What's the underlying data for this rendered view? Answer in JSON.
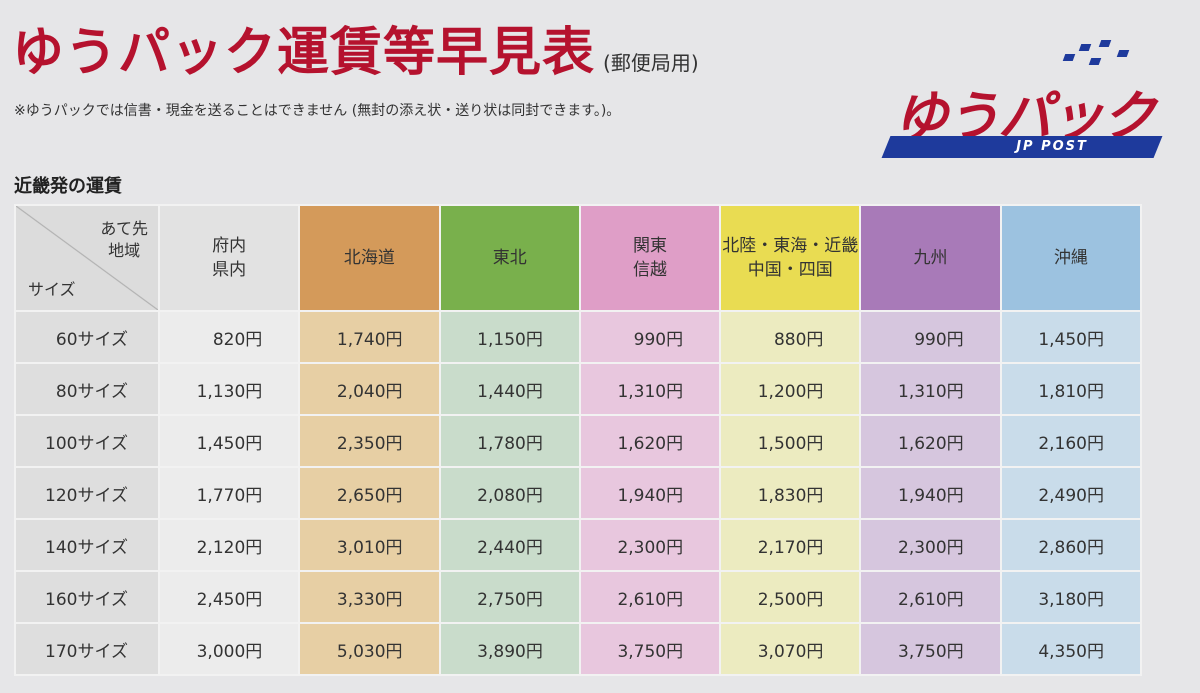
{
  "header": {
    "title": "ゆうパック運賃等早見表",
    "subtitle": "(郵便局用)",
    "note": "※ゆうパックでは信書・現金を送ることはできません (無封の添え状・送り状は同封できます。)。",
    "section": "近畿発の運賃"
  },
  "logo": {
    "wordmark": "ゆうパック",
    "tagline": "JP POST",
    "brand_red": "#b5122e",
    "brand_blue": "#1e3a9c"
  },
  "table": {
    "corner_dest_line1": "あて先",
    "corner_dest_line2": "地域",
    "corner_size": "サイズ",
    "regions": [
      {
        "line1": "府内",
        "line2": "県内"
      },
      {
        "line1": "北海道",
        "line2": ""
      },
      {
        "line1": "東北",
        "line2": ""
      },
      {
        "line1": "関東",
        "line2": "信越"
      },
      {
        "line1": "北陸・東海・近畿",
        "line2": "中国・四国"
      },
      {
        "line1": "九州",
        "line2": ""
      },
      {
        "line1": "沖縄",
        "line2": ""
      }
    ],
    "rows": [
      {
        "size": "60サイズ",
        "prices": [
          "820円",
          "1,740円",
          "1,150円",
          "990円",
          "880円",
          "990円",
          "1,450円"
        ]
      },
      {
        "size": "80サイズ",
        "prices": [
          "1,130円",
          "2,040円",
          "1,440円",
          "1,310円",
          "1,200円",
          "1,310円",
          "1,810円"
        ]
      },
      {
        "size": "100サイズ",
        "prices": [
          "1,450円",
          "2,350円",
          "1,780円",
          "1,620円",
          "1,500円",
          "1,620円",
          "2,160円"
        ]
      },
      {
        "size": "120サイズ",
        "prices": [
          "1,770円",
          "2,650円",
          "2,080円",
          "1,940円",
          "1,830円",
          "1,940円",
          "2,490円"
        ]
      },
      {
        "size": "140サイズ",
        "prices": [
          "2,120円",
          "3,010円",
          "2,440円",
          "2,300円",
          "2,170円",
          "2,300円",
          "2,860円"
        ]
      },
      {
        "size": "160サイズ",
        "prices": [
          "2,450円",
          "3,330円",
          "2,750円",
          "2,610円",
          "2,500円",
          "2,610円",
          "3,180円"
        ]
      },
      {
        "size": "170サイズ",
        "prices": [
          "3,000円",
          "5,030円",
          "3,890円",
          "3,750円",
          "3,070円",
          "3,750円",
          "4,350円"
        ]
      }
    ]
  }
}
